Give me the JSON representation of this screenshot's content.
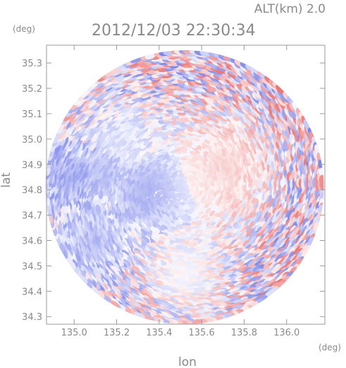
{
  "header": {
    "altitude_label": "ALT(km) 2.0",
    "timestamp": "2012/12/03 22:30:34"
  },
  "chart_data": {
    "type": "heatmap",
    "xlabel": "lon",
    "ylabel": "lat",
    "x_unit": "(deg)",
    "y_unit": "(deg)",
    "xlim": [
      134.87,
      136.18
    ],
    "ylim": [
      34.27,
      35.37
    ],
    "xticks": [
      135.0,
      135.2,
      135.4,
      135.6,
      135.8,
      136.0
    ],
    "yticks": [
      34.3,
      34.4,
      34.5,
      34.6,
      34.7,
      34.8,
      34.9,
      35.0,
      35.1,
      35.2,
      35.3
    ],
    "xtick_labels": [
      "135.0",
      "135.2",
      "135.4",
      "135.6",
      "135.8",
      "136.0"
    ],
    "ytick_labels": [
      "34.3",
      "34.4",
      "34.5",
      "34.6",
      "34.7",
      "34.8",
      "34.9",
      "35.0",
      "35.1",
      "35.2",
      "35.3"
    ],
    "grid": false,
    "colormap": {
      "negative": "#6470e6",
      "zero": "#ffffff",
      "positive": "#e85c5c"
    },
    "radar_center": {
      "lon": 135.52,
      "lat": 34.81
    },
    "radar_radius_deg_lon": 0.655,
    "radar_radius_deg_lat": 0.54,
    "field_regions": [
      {
        "name": "west-blue-band",
        "lon": 134.98,
        "lat": 34.86,
        "value": -0.55
      },
      {
        "name": "west-blue-band-2",
        "lon": 135.12,
        "lat": 34.88,
        "value": -0.45
      },
      {
        "name": "northwest-light-blue",
        "lon": 135.2,
        "lat": 35.0,
        "value": -0.2
      },
      {
        "name": "south-white-area",
        "lon": 135.52,
        "lat": 34.45,
        "value": 0.0
      },
      {
        "name": "east-light-red",
        "lon": 135.72,
        "lat": 34.9,
        "value": 0.25
      },
      {
        "name": "southwest-blue-patch",
        "lon": 135.08,
        "lat": 34.6,
        "value": -0.45
      },
      {
        "name": "center-blue-patch",
        "lon": 135.33,
        "lat": 34.79,
        "value": -0.5
      }
    ]
  }
}
